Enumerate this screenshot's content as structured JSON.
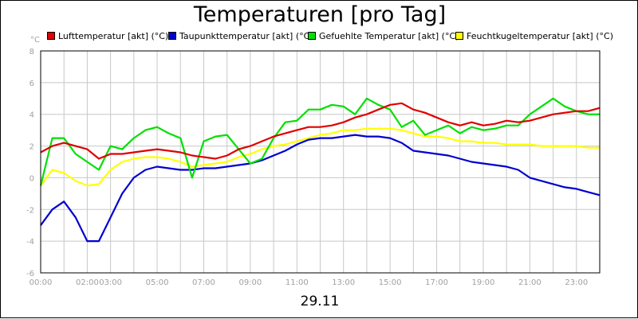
{
  "title": "Temperaturen [pro Tag]",
  "date": "29.11",
  "colors": {
    "grid": "#c8c8c8",
    "axis": "#000000",
    "tick_text": "#a0a0a0"
  },
  "chart_data": {
    "type": "line",
    "title": "Temperaturen [pro Tag]",
    "xlabel": "29.11",
    "ylabel": "°C",
    "unit": "°C",
    "x_range_hours": [
      0,
      24
    ],
    "ylim": [
      -6,
      8
    ],
    "yticks": [
      -6,
      -4,
      -2,
      0,
      2,
      4,
      6,
      8
    ],
    "grid": true,
    "legend_position": "top",
    "x_gridlines_hours": [
      0,
      1,
      2,
      3,
      4,
      5,
      6,
      7,
      8,
      9,
      10,
      11,
      12,
      13,
      14,
      15,
      16,
      17,
      18,
      19,
      20,
      21,
      22,
      23
    ],
    "x_tick_labels": [
      {
        "hour": 0,
        "label": "00:00"
      },
      {
        "hour": 2,
        "label": "02:00"
      },
      {
        "hour": 3,
        "label": "03:00"
      },
      {
        "hour": 5,
        "label": "05:00"
      },
      {
        "hour": 7,
        "label": "07:00"
      },
      {
        "hour": 9,
        "label": "09:00"
      },
      {
        "hour": 11,
        "label": "11:00"
      },
      {
        "hour": 13,
        "label": "13:00"
      },
      {
        "hour": 15,
        "label": "15:00"
      },
      {
        "hour": 17,
        "label": "17:00"
      },
      {
        "hour": 19,
        "label": "19:00"
      },
      {
        "hour": 21,
        "label": "21:00"
      },
      {
        "hour": 23,
        "label": "23:00"
      }
    ],
    "x_hours": [
      0,
      0.5,
      1,
      1.5,
      2,
      2.5,
      3,
      3.5,
      4,
      4.5,
      5,
      5.5,
      6,
      6.5,
      7,
      7.5,
      8,
      8.5,
      9,
      9.5,
      10,
      10.5,
      11,
      11.5,
      12,
      12.5,
      13,
      13.5,
      14,
      14.5,
      15,
      15.5,
      16,
      16.5,
      17,
      17.5,
      18,
      18.5,
      19,
      19.5,
      20,
      20.5,
      21,
      21.5,
      22,
      22.5,
      23,
      23.5,
      24
    ],
    "series": [
      {
        "name": "Lufttemperatur [akt] (°C)",
        "color": "#e00000",
        "values": [
          1.6,
          2.0,
          2.2,
          2.0,
          1.8,
          1.2,
          1.5,
          1.5,
          1.6,
          1.7,
          1.8,
          1.7,
          1.6,
          1.4,
          1.3,
          1.2,
          1.4,
          1.8,
          2.0,
          2.3,
          2.6,
          2.8,
          3.0,
          3.2,
          3.2,
          3.3,
          3.5,
          3.8,
          4.0,
          4.3,
          4.6,
          4.7,
          4.3,
          4.1,
          3.8,
          3.5,
          3.3,
          3.5,
          3.3,
          3.4,
          3.6,
          3.5,
          3.6,
          3.8,
          4.0,
          4.1,
          4.2,
          4.2,
          4.4
        ]
      },
      {
        "name": "Taupunkttemperatur [akt] (°C)",
        "color": "#0000d0",
        "values": [
          -3.0,
          -2.0,
          -1.5,
          -2.5,
          -4.0,
          -4.0,
          -2.5,
          -1.0,
          0.0,
          0.5,
          0.7,
          0.6,
          0.5,
          0.5,
          0.6,
          0.6,
          0.7,
          0.8,
          0.9,
          1.1,
          1.4,
          1.7,
          2.1,
          2.4,
          2.5,
          2.5,
          2.6,
          2.7,
          2.6,
          2.6,
          2.5,
          2.2,
          1.7,
          1.6,
          1.5,
          1.4,
          1.2,
          1.0,
          0.9,
          0.8,
          0.7,
          0.5,
          0.0,
          -0.2,
          -0.4,
          -0.6,
          -0.7,
          -0.9,
          -1.1
        ]
      },
      {
        "name": "Gefuehlte Temperatur [akt] (°C)",
        "color": "#00e000",
        "values": [
          -0.5,
          2.5,
          2.5,
          1.5,
          1.0,
          0.5,
          2.0,
          1.8,
          2.5,
          3.0,
          3.2,
          2.8,
          2.5,
          0.0,
          2.3,
          2.6,
          2.7,
          1.8,
          0.9,
          1.2,
          2.5,
          3.5,
          3.6,
          4.3,
          4.3,
          4.6,
          4.5,
          4.0,
          5.0,
          4.6,
          4.3,
          3.2,
          3.6,
          2.7,
          3.0,
          3.3,
          2.8,
          3.2,
          3.0,
          3.1,
          3.3,
          3.3,
          4.0,
          4.5,
          5.0,
          4.5,
          4.2,
          4.0,
          4.0
        ]
      },
      {
        "name": "Feuchtkugeltemperatur [akt] (°C)",
        "color": "#ffff00",
        "values": [
          -0.5,
          0.5,
          0.3,
          -0.2,
          -0.5,
          -0.4,
          0.5,
          1.0,
          1.2,
          1.3,
          1.3,
          1.2,
          1.0,
          0.7,
          0.8,
          0.9,
          1.0,
          1.3,
          1.5,
          1.8,
          2.0,
          2.1,
          2.3,
          2.5,
          2.7,
          2.8,
          3.0,
          3.0,
          3.1,
          3.1,
          3.1,
          3.0,
          2.8,
          2.6,
          2.6,
          2.5,
          2.3,
          2.3,
          2.2,
          2.2,
          2.1,
          2.1,
          2.1,
          2.0,
          2.0,
          2.0,
          2.0,
          1.9,
          1.9
        ]
      }
    ]
  }
}
